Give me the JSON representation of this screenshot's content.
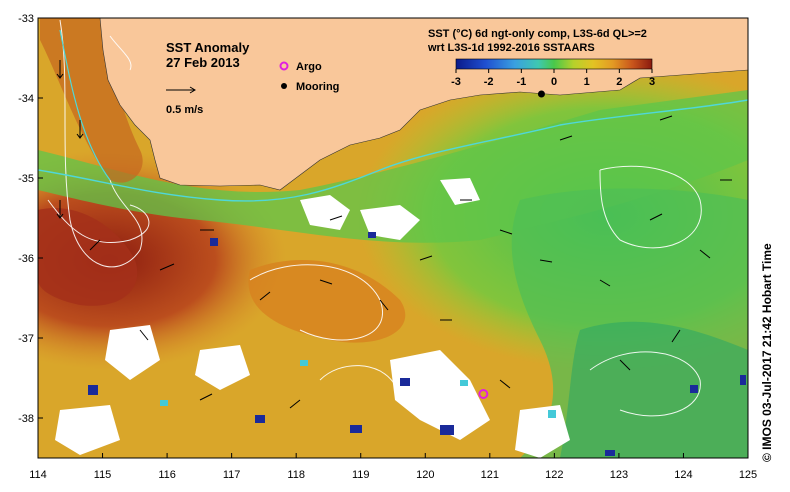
{
  "map": {
    "title": "SST Anomaly",
    "date": "27 Feb 2013",
    "arrow_scale_label": "0.5 m/s",
    "legend": {
      "argo": "Argo",
      "mooring": "Mooring"
    },
    "colorbar": {
      "title_line1": "SST (°C) 6d ngt-only comp, L3S-6d QL>=2",
      "title_line2": "wrt L3S-1d 1992-2016 SSTAARS",
      "ticks": [
        "-3",
        "-2",
        "-1",
        "0",
        "1",
        "2",
        "3"
      ],
      "range": [
        -3,
        3
      ]
    },
    "lon_ticks": [
      "114",
      "115",
      "116",
      "117",
      "118",
      "119",
      "120",
      "121",
      "122",
      "123",
      "124",
      "125"
    ],
    "lat_ticks": [
      "-33",
      "-34",
      "-35",
      "-36",
      "-37",
      "-38"
    ],
    "lon_range": [
      114,
      125
    ],
    "lat_range": [
      -38.5,
      -33
    ],
    "credit": "© IMOS 03-Jul-2017 21:42 Hobart Time",
    "argo_position": {
      "lon": 120.9,
      "lat": -37.7
    },
    "mooring_position": {
      "lon": 121.8,
      "lat": -33.95
    },
    "colors": {
      "land": "#f9c79a",
      "argo": "#e020e0",
      "mooring": "#000000"
    }
  }
}
